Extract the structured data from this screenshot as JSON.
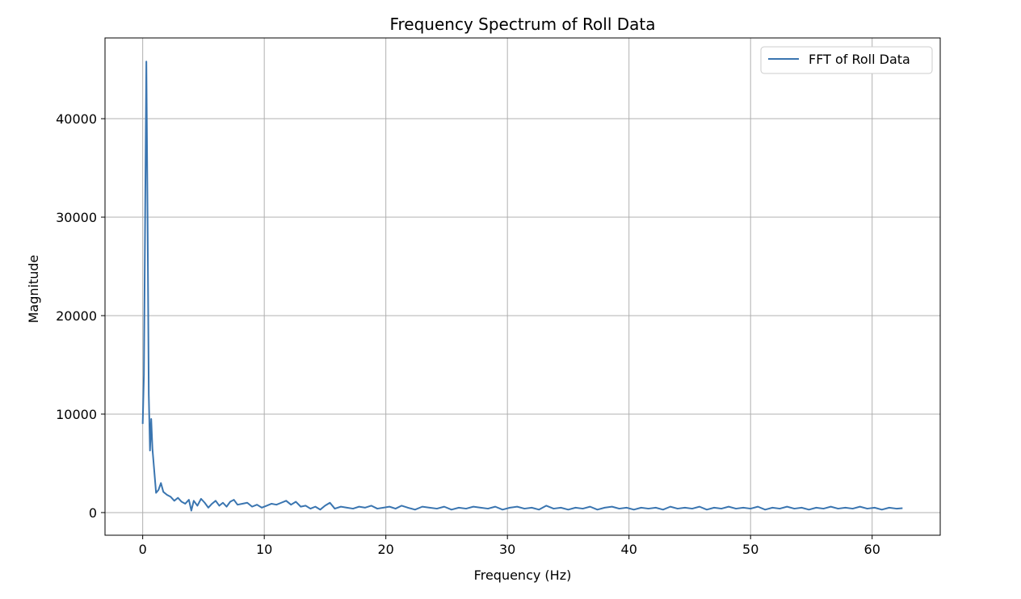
{
  "chart_data": {
    "type": "line",
    "title": "Frequency Spectrum of Roll Data",
    "xlabel": "Frequency (Hz)",
    "ylabel": "Magnitude",
    "xlim": [
      -3.1,
      65.6
    ],
    "ylim": [
      -2300,
      48200
    ],
    "xticks": [
      0,
      10,
      20,
      30,
      40,
      50,
      60
    ],
    "xtick_labels": [
      "0",
      "10",
      "20",
      "30",
      "40",
      "50",
      "60"
    ],
    "yticks": [
      0,
      10000,
      20000,
      30000,
      40000
    ],
    "ytick_labels": [
      "0",
      "10000",
      "20000",
      "30000",
      "40000"
    ],
    "grid": true,
    "legend_position": "upper-right",
    "line_color": "#3a75b0",
    "series": [
      {
        "name": "FFT of Roll Data",
        "points": [
          [
            0.0,
            9000
          ],
          [
            0.1,
            14000
          ],
          [
            0.2,
            30000
          ],
          [
            0.3,
            45800
          ],
          [
            0.4,
            30000
          ],
          [
            0.5,
            12000
          ],
          [
            0.6,
            6300
          ],
          [
            0.7,
            9500
          ],
          [
            0.8,
            6500
          ],
          [
            0.9,
            5000
          ],
          [
            1.0,
            3500
          ],
          [
            1.1,
            2000
          ],
          [
            1.3,
            2300
          ],
          [
            1.5,
            3000
          ],
          [
            1.7,
            2100
          ],
          [
            2.0,
            1800
          ],
          [
            2.3,
            1600
          ],
          [
            2.6,
            1200
          ],
          [
            2.9,
            1500
          ],
          [
            3.2,
            1100
          ],
          [
            3.5,
            900
          ],
          [
            3.8,
            1300
          ],
          [
            4.0,
            200
          ],
          [
            4.2,
            1200
          ],
          [
            4.5,
            700
          ],
          [
            4.8,
            1400
          ],
          [
            5.1,
            1000
          ],
          [
            5.4,
            500
          ],
          [
            5.7,
            900
          ],
          [
            6.0,
            1200
          ],
          [
            6.3,
            700
          ],
          [
            6.6,
            1000
          ],
          [
            6.9,
            600
          ],
          [
            7.2,
            1100
          ],
          [
            7.5,
            1300
          ],
          [
            7.8,
            800
          ],
          [
            8.2,
            900
          ],
          [
            8.6,
            1000
          ],
          [
            9.0,
            600
          ],
          [
            9.4,
            800
          ],
          [
            9.8,
            500
          ],
          [
            10.2,
            700
          ],
          [
            10.6,
            900
          ],
          [
            11.0,
            800
          ],
          [
            11.4,
            1000
          ],
          [
            11.8,
            1200
          ],
          [
            12.2,
            800
          ],
          [
            12.6,
            1100
          ],
          [
            13.0,
            600
          ],
          [
            13.4,
            700
          ],
          [
            13.8,
            400
          ],
          [
            14.2,
            600
          ],
          [
            14.6,
            300
          ],
          [
            15.0,
            700
          ],
          [
            15.4,
            1000
          ],
          [
            15.8,
            400
          ],
          [
            16.3,
            600
          ],
          [
            16.8,
            500
          ],
          [
            17.3,
            400
          ],
          [
            17.8,
            600
          ],
          [
            18.3,
            500
          ],
          [
            18.8,
            700
          ],
          [
            19.3,
            400
          ],
          [
            19.8,
            500
          ],
          [
            20.3,
            600
          ],
          [
            20.8,
            400
          ],
          [
            21.3,
            700
          ],
          [
            21.8,
            500
          ],
          [
            22.4,
            300
          ],
          [
            23.0,
            600
          ],
          [
            23.6,
            500
          ],
          [
            24.2,
            400
          ],
          [
            24.8,
            600
          ],
          [
            25.4,
            300
          ],
          [
            26.0,
            500
          ],
          [
            26.6,
            400
          ],
          [
            27.2,
            600
          ],
          [
            27.8,
            500
          ],
          [
            28.4,
            400
          ],
          [
            29.0,
            600
          ],
          [
            29.6,
            300
          ],
          [
            30.2,
            500
          ],
          [
            30.8,
            600
          ],
          [
            31.4,
            400
          ],
          [
            32.0,
            500
          ],
          [
            32.6,
            300
          ],
          [
            33.2,
            700
          ],
          [
            33.8,
            400
          ],
          [
            34.4,
            500
          ],
          [
            35.0,
            300
          ],
          [
            35.6,
            500
          ],
          [
            36.2,
            400
          ],
          [
            36.8,
            600
          ],
          [
            37.4,
            300
          ],
          [
            38.0,
            500
          ],
          [
            38.6,
            600
          ],
          [
            39.2,
            400
          ],
          [
            39.8,
            500
          ],
          [
            40.4,
            300
          ],
          [
            41.0,
            500
          ],
          [
            41.6,
            400
          ],
          [
            42.2,
            500
          ],
          [
            42.8,
            300
          ],
          [
            43.4,
            600
          ],
          [
            44.0,
            400
          ],
          [
            44.6,
            500
          ],
          [
            45.2,
            400
          ],
          [
            45.8,
            600
          ],
          [
            46.4,
            300
          ],
          [
            47.0,
            500
          ],
          [
            47.6,
            400
          ],
          [
            48.2,
            600
          ],
          [
            48.8,
            400
          ],
          [
            49.4,
            500
          ],
          [
            50.0,
            400
          ],
          [
            50.6,
            600
          ],
          [
            51.2,
            300
          ],
          [
            51.8,
            500
          ],
          [
            52.4,
            400
          ],
          [
            53.0,
            600
          ],
          [
            53.6,
            400
          ],
          [
            54.2,
            500
          ],
          [
            54.8,
            300
          ],
          [
            55.4,
            500
          ],
          [
            56.0,
            400
          ],
          [
            56.6,
            600
          ],
          [
            57.2,
            400
          ],
          [
            57.8,
            500
          ],
          [
            58.4,
            400
          ],
          [
            59.0,
            600
          ],
          [
            59.6,
            400
          ],
          [
            60.2,
            500
          ],
          [
            60.8,
            300
          ],
          [
            61.4,
            500
          ],
          [
            62.0,
            400
          ],
          [
            62.5,
            450
          ]
        ]
      }
    ]
  }
}
